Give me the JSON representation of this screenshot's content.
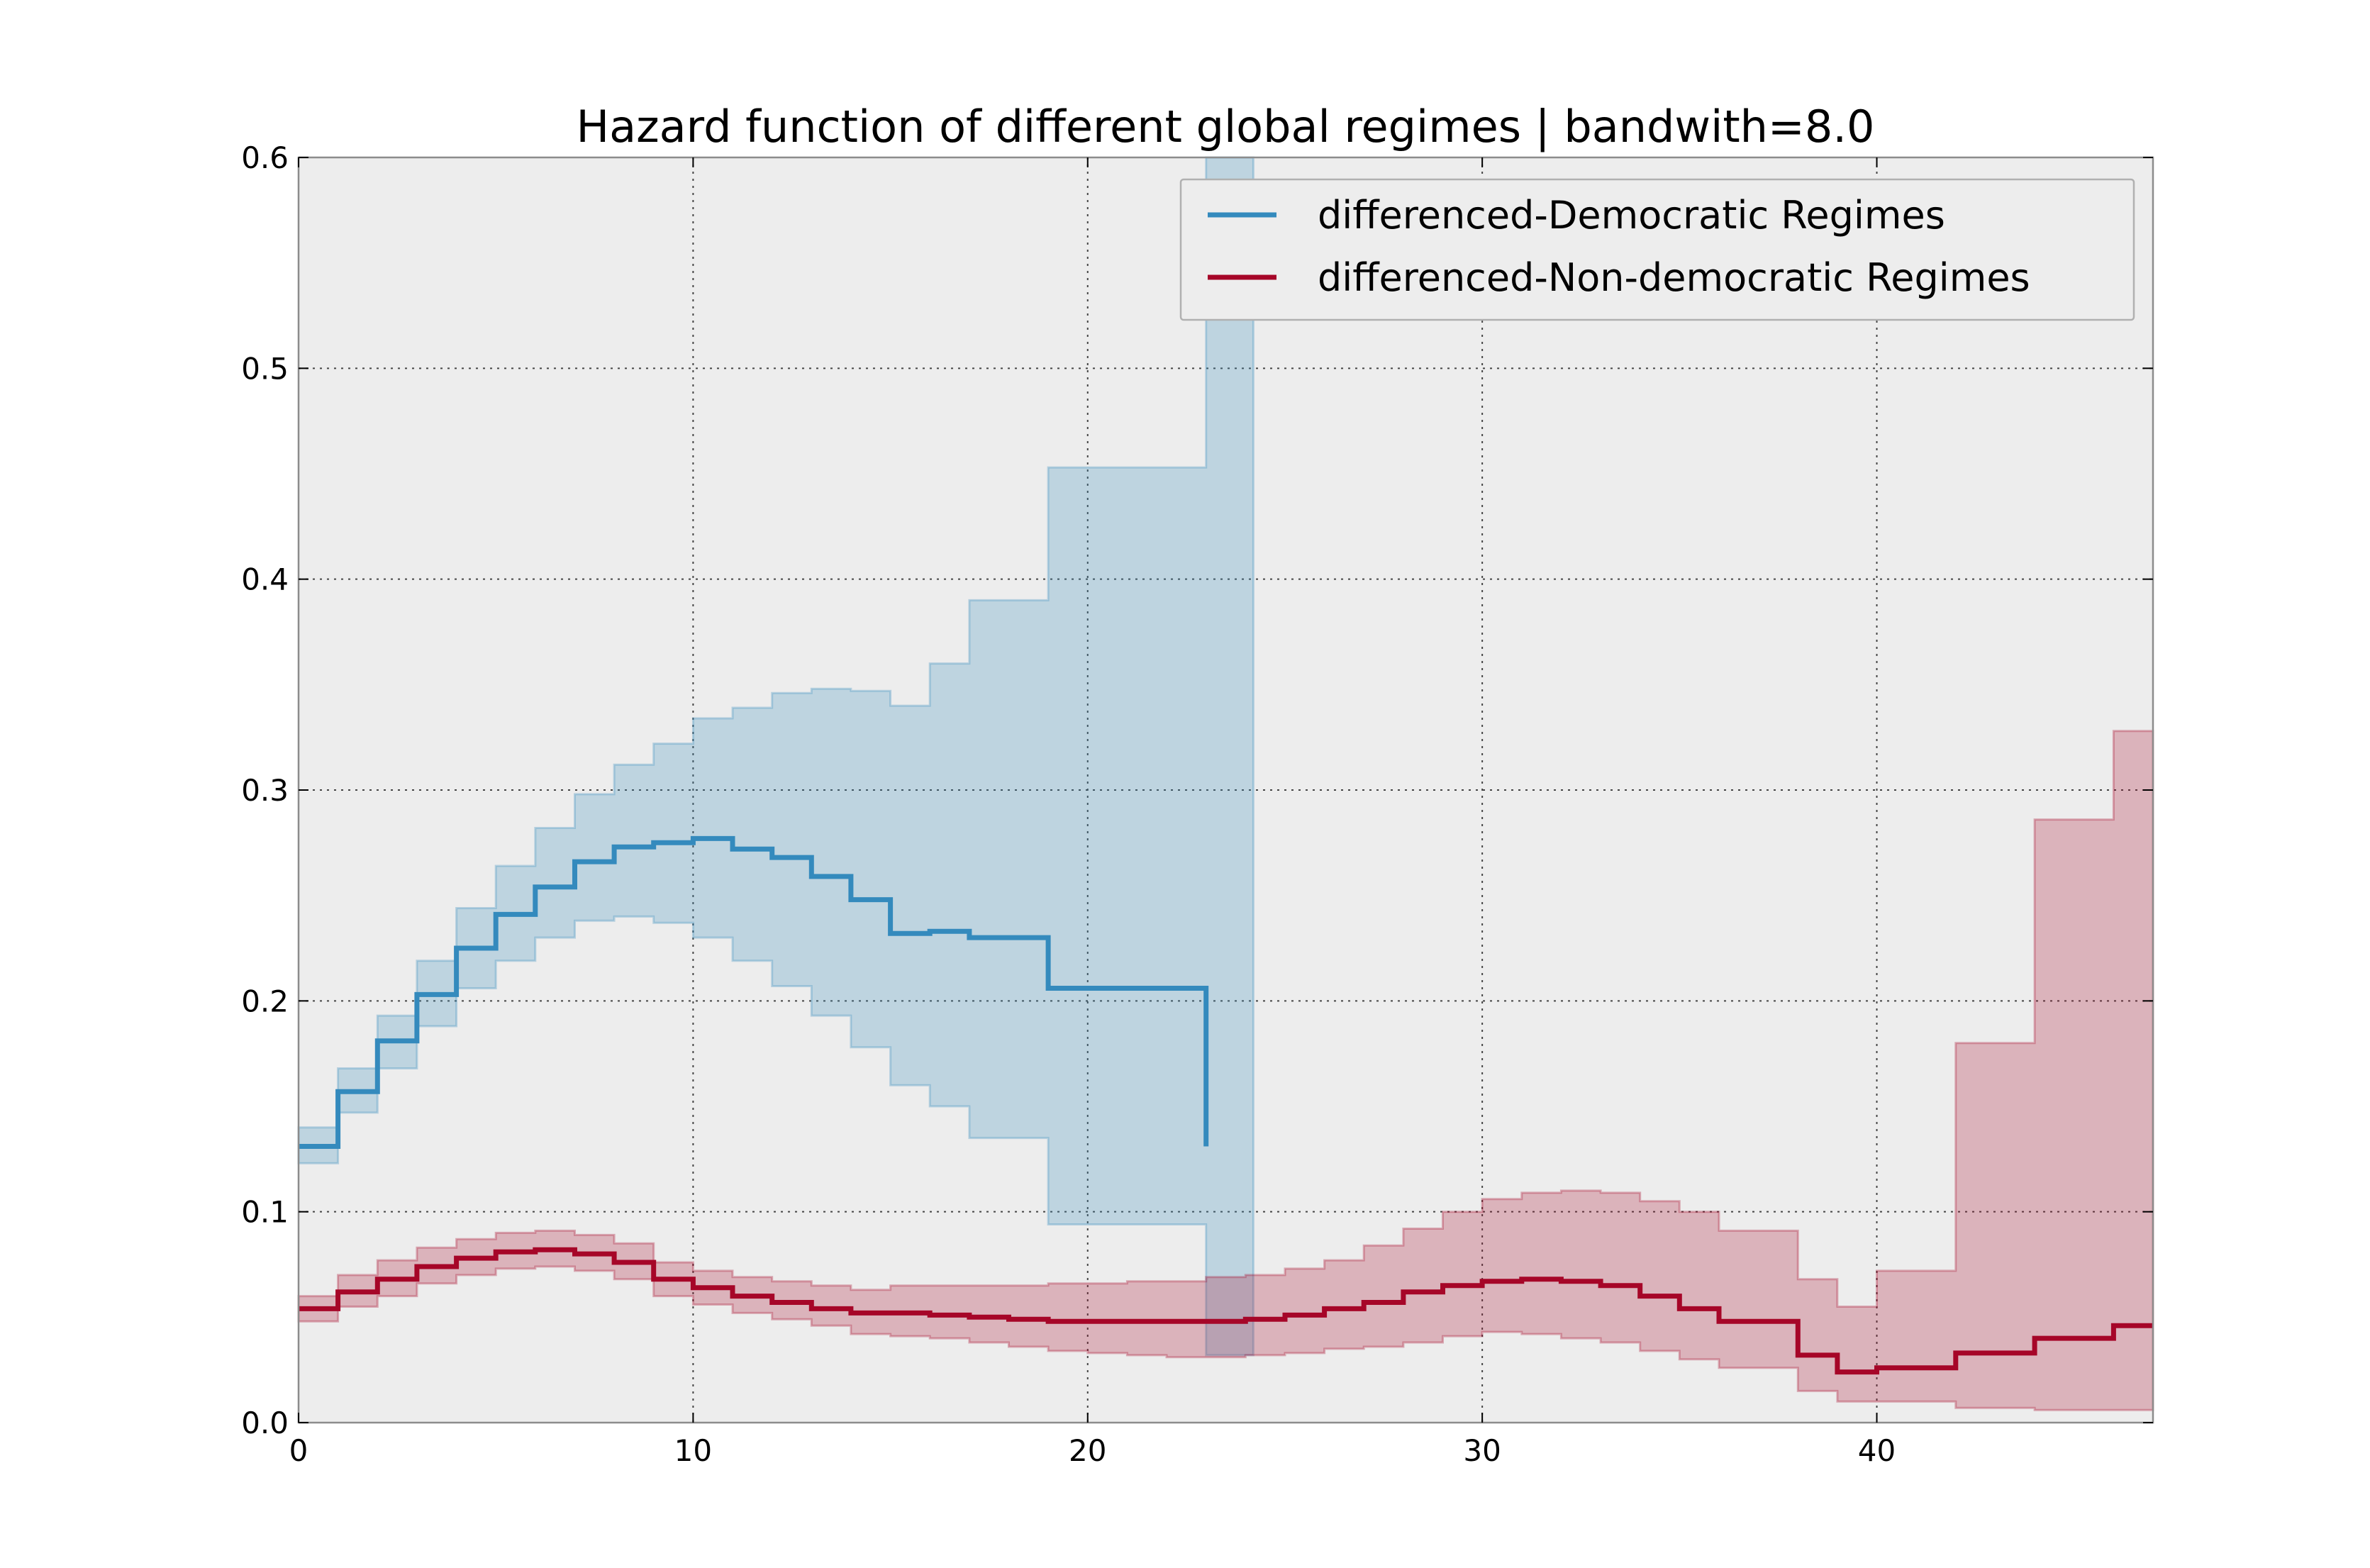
{
  "chart_data": {
    "type": "line",
    "step": "post",
    "title": "Hazard function of different global regimes | bandwith=8.0",
    "xlabel": "",
    "ylabel": "",
    "xlim": [
      0,
      47
    ],
    "ylim": [
      0,
      0.6
    ],
    "xticks": [
      0,
      10,
      20,
      30,
      40
    ],
    "yticks": [
      0.0,
      0.1,
      0.2,
      0.3,
      0.4,
      0.5,
      0.6
    ],
    "xtick_labels": [
      "0",
      "10",
      "20",
      "30",
      "40"
    ],
    "ytick_labels": [
      "0.0",
      "0.1",
      "0.2",
      "0.3",
      "0.4",
      "0.5",
      "0.6"
    ],
    "grid": true,
    "background": "#ededed",
    "legend_position": "top-right",
    "series": [
      {
        "name": "differenced-Democratic Regimes",
        "color": "#348abd",
        "x": [
          0,
          1,
          2,
          3,
          4,
          5,
          6,
          7,
          8,
          9,
          10,
          11,
          12,
          13,
          14,
          15,
          16,
          17,
          18,
          19,
          20,
          21,
          22,
          23
        ],
        "values": [
          0.131,
          0.157,
          0.181,
          0.203,
          0.225,
          0.241,
          0.254,
          0.266,
          0.273,
          0.275,
          0.277,
          0.272,
          0.268,
          0.259,
          0.248,
          0.232,
          0.233,
          0.23,
          0.23,
          0.206,
          0.206,
          0.206,
          0.206,
          0.131
        ],
        "upper": [
          0.14,
          0.168,
          0.193,
          0.219,
          0.244,
          0.264,
          0.282,
          0.298,
          0.312,
          0.322,
          0.334,
          0.339,
          0.346,
          0.348,
          0.347,
          0.34,
          0.36,
          0.39,
          0.39,
          0.453,
          0.453,
          0.453,
          0.453,
          0.6
        ],
        "lower": [
          0.123,
          0.147,
          0.168,
          0.188,
          0.206,
          0.219,
          0.23,
          0.238,
          0.24,
          0.237,
          0.23,
          0.219,
          0.207,
          0.193,
          0.178,
          0.16,
          0.15,
          0.135,
          0.135,
          0.094,
          0.094,
          0.094,
          0.094,
          0.032
        ],
        "band_end": 24.2
      },
      {
        "name": "differenced-Non-democratic Regimes",
        "color": "#a60628",
        "x": [
          0,
          1,
          2,
          3,
          4,
          5,
          6,
          7,
          8,
          9,
          10,
          11,
          12,
          13,
          14,
          15,
          16,
          17,
          18,
          19,
          20,
          21,
          22,
          23,
          24,
          25,
          26,
          27,
          28,
          29,
          30,
          31,
          32,
          33,
          34,
          35,
          36,
          37,
          38,
          39,
          40,
          41,
          42,
          43,
          44,
          45,
          46
        ],
        "values": [
          0.054,
          0.062,
          0.068,
          0.074,
          0.078,
          0.081,
          0.082,
          0.08,
          0.076,
          0.068,
          0.064,
          0.06,
          0.057,
          0.054,
          0.052,
          0.052,
          0.051,
          0.05,
          0.049,
          0.048,
          0.048,
          0.048,
          0.048,
          0.048,
          0.049,
          0.051,
          0.054,
          0.057,
          0.062,
          0.065,
          0.067,
          0.068,
          0.067,
          0.065,
          0.06,
          0.054,
          0.048,
          0.048,
          0.032,
          0.024,
          0.026,
          0.026,
          0.033,
          0.033,
          0.04,
          0.04,
          0.046
        ],
        "upper": [
          0.06,
          0.07,
          0.077,
          0.083,
          0.087,
          0.09,
          0.091,
          0.089,
          0.085,
          0.076,
          0.072,
          0.069,
          0.067,
          0.065,
          0.063,
          0.065,
          0.065,
          0.065,
          0.065,
          0.066,
          0.066,
          0.067,
          0.067,
          0.069,
          0.07,
          0.073,
          0.077,
          0.084,
          0.092,
          0.1,
          0.106,
          0.109,
          0.11,
          0.109,
          0.105,
          0.1,
          0.091,
          0.091,
          0.068,
          0.055,
          0.072,
          0.072,
          0.18,
          0.18,
          0.286,
          0.286,
          0.328
        ],
        "lower": [
          0.048,
          0.055,
          0.06,
          0.066,
          0.07,
          0.073,
          0.074,
          0.072,
          0.068,
          0.06,
          0.056,
          0.052,
          0.049,
          0.046,
          0.042,
          0.041,
          0.04,
          0.038,
          0.036,
          0.034,
          0.033,
          0.032,
          0.031,
          0.031,
          0.032,
          0.033,
          0.035,
          0.036,
          0.038,
          0.041,
          0.043,
          0.042,
          0.04,
          0.038,
          0.034,
          0.03,
          0.026,
          0.026,
          0.015,
          0.01,
          0.01,
          0.01,
          0.007,
          0.007,
          0.006,
          0.006,
          0.006
        ],
        "band_end": 47
      }
    ]
  }
}
